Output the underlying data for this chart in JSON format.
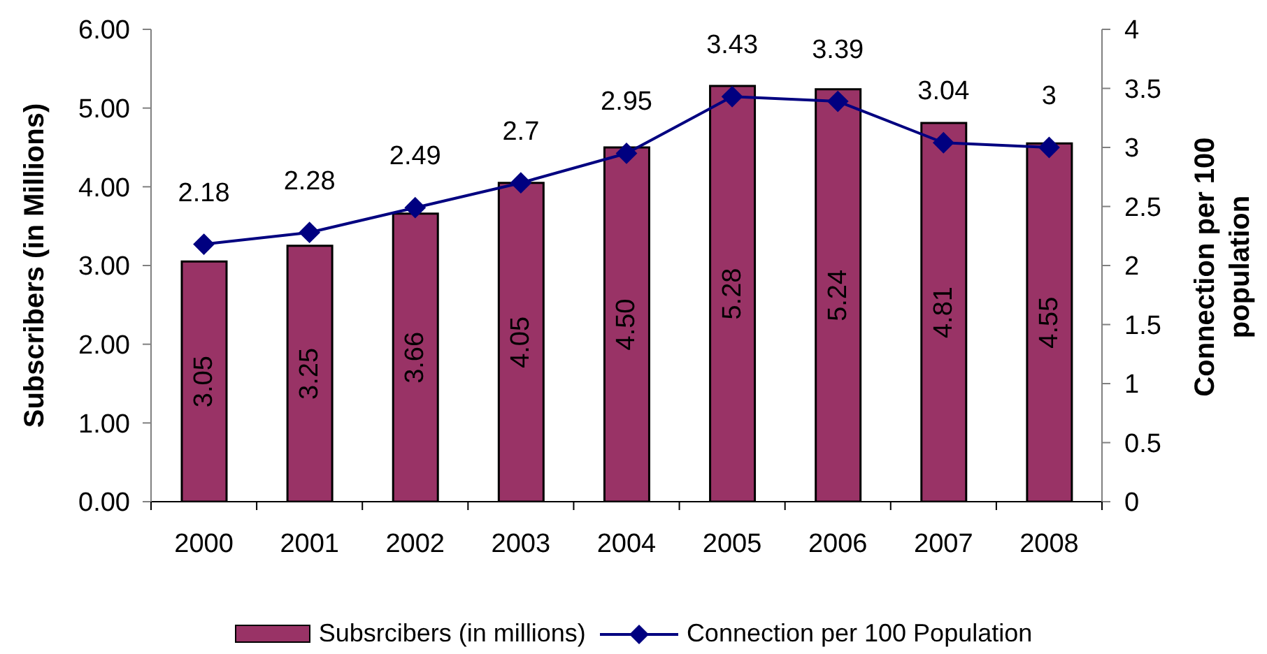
{
  "chart_data": {
    "type": "bar",
    "ylabel": "Subscribers (in Millions)",
    "y2label": "Connection per 100 population",
    "categories": [
      "2000",
      "2001",
      "2002",
      "2003",
      "2004",
      "2005",
      "2006",
      "2007",
      "2008"
    ],
    "series": [
      {
        "name": "Subsrcibers (in millions)",
        "color": "#993366",
        "values": [
          3.05,
          3.25,
          3.66,
          4.05,
          4.5,
          5.28,
          5.24,
          4.81,
          4.55
        ],
        "value_labels": [
          "3.05",
          "3.25",
          "3.66",
          "4.05",
          "4.50",
          "5.28",
          "5.24",
          "4.81",
          "4.55"
        ]
      },
      {
        "name": "Connection per 100 Population",
        "type": "line",
        "axis": "y2",
        "color": "#000080",
        "values": [
          2.18,
          2.28,
          2.49,
          2.7,
          2.95,
          3.43,
          3.39,
          3.04,
          3
        ],
        "value_labels": [
          "2.18",
          "2.28",
          "2.49",
          "2.7",
          "2.95",
          "3.43",
          "3.39",
          "3.04",
          "3"
        ]
      }
    ],
    "ylim": [
      0,
      6
    ],
    "yticks": [
      {
        "value": 0,
        "label": "0.00"
      },
      {
        "value": 1,
        "label": "1.00"
      },
      {
        "value": 2,
        "label": "2.00"
      },
      {
        "value": 3,
        "label": "3.00"
      },
      {
        "value": 4,
        "label": "4.00"
      },
      {
        "value": 5,
        "label": "5.00"
      },
      {
        "value": 6,
        "label": "6.00"
      }
    ],
    "y2lim": [
      0,
      4
    ],
    "y2ticks": [
      0,
      0.5,
      1,
      1.5,
      2,
      2.5,
      3,
      3.5,
      4
    ],
    "marker": "diamond",
    "legend": "bottom"
  }
}
